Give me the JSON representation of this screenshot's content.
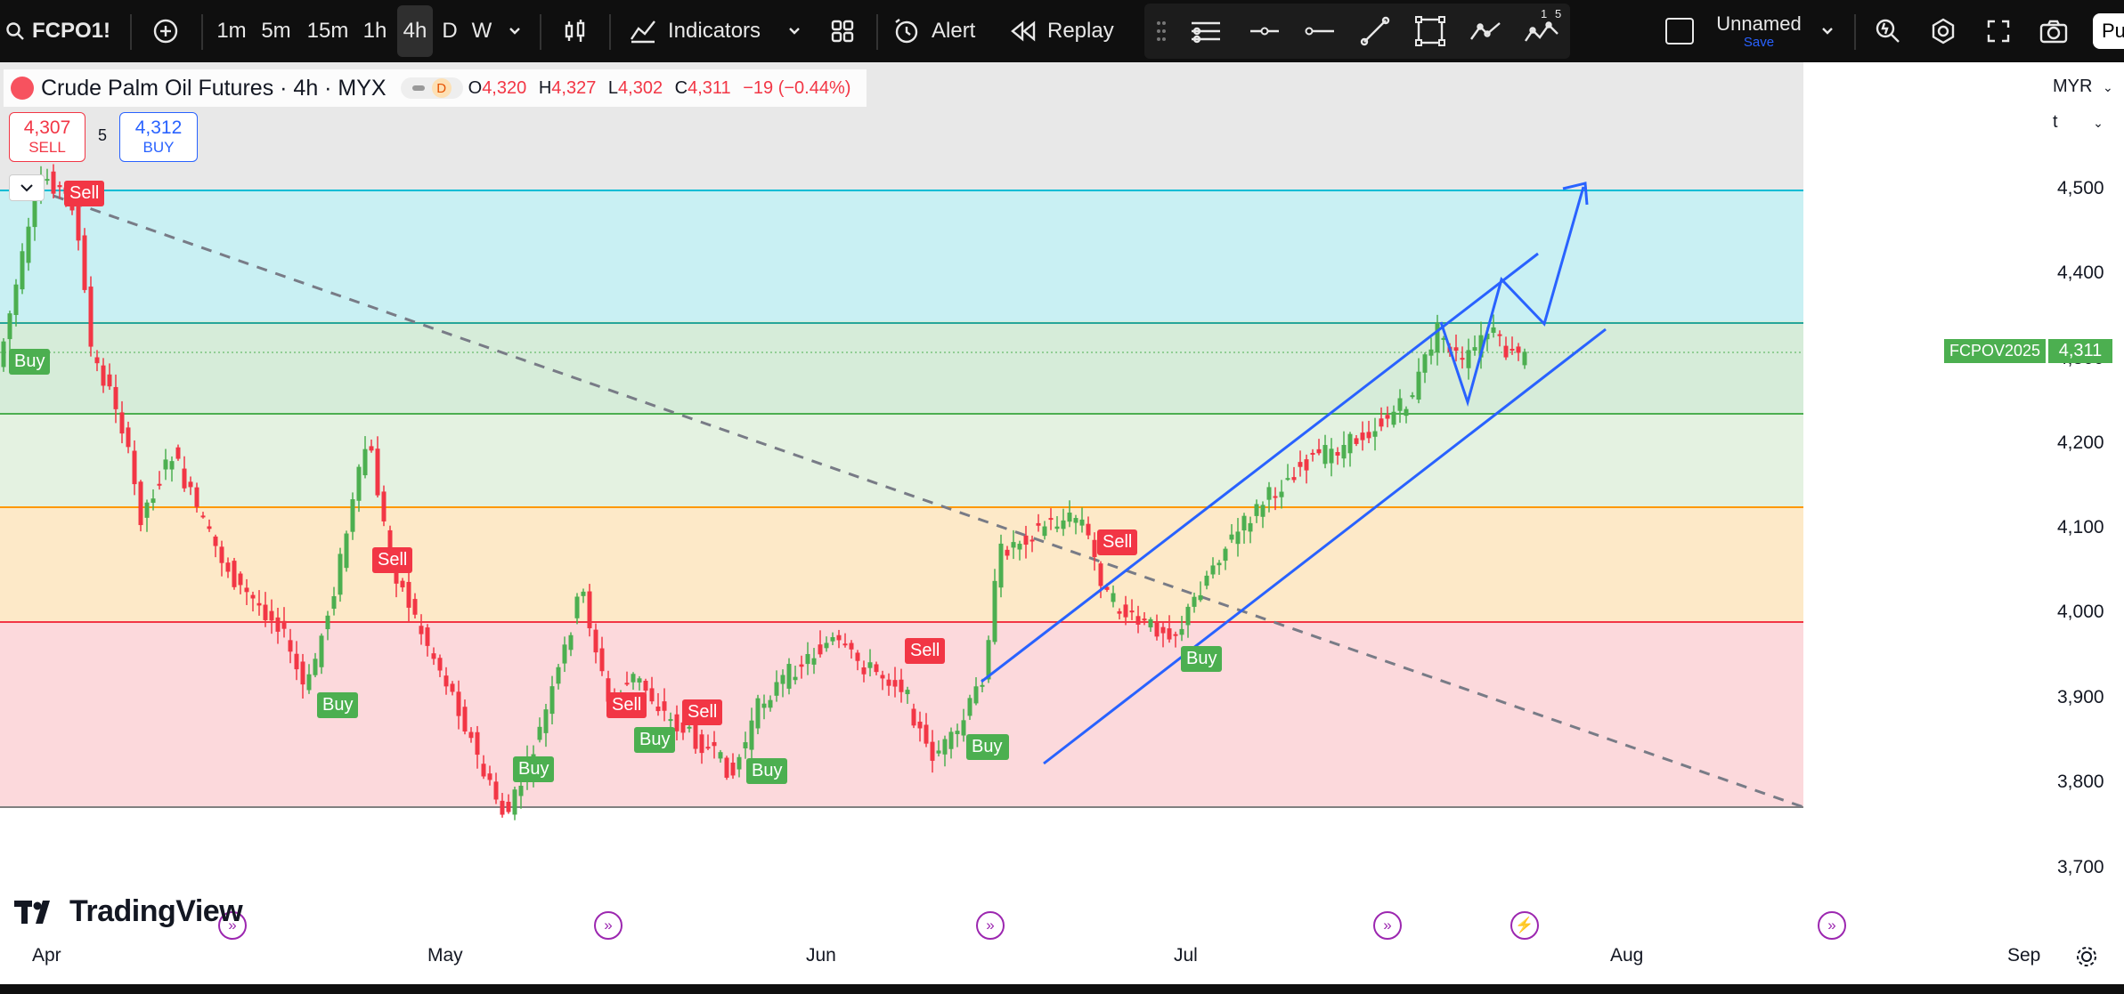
{
  "toolbar": {
    "symbol": "FCPO1!",
    "timeframes": [
      "1m",
      "5m",
      "15m",
      "1h",
      "4h",
      "D",
      "W"
    ],
    "active_timeframe": "4h",
    "indicators_label": "Indicators",
    "alert_label": "Alert",
    "replay_label": "Replay",
    "layout_name": "Unnamed",
    "layout_save": "Save",
    "publish_label": "Pu",
    "draw_badge_a": "1",
    "draw_badge_b": "5"
  },
  "legend": {
    "title": "Crude Palm Oil Futures · 4h · MYX",
    "mode_badge": "D",
    "o_label": "O",
    "o": "4,320",
    "h_label": "H",
    "h": "4,327",
    "l_label": "L",
    "l": "4,302",
    "c_label": "C",
    "c": "4,311",
    "change": "−19 (−0.44%)"
  },
  "order": {
    "sell_price": "4,307",
    "sell_label": "SELL",
    "lot": "5",
    "buy_price": "4,312",
    "buy_label": "BUY"
  },
  "price_axis": {
    "currency": "MYX",
    "currency_display": "MYR",
    "unit": "t",
    "ticks": [
      "4,500",
      "4,400",
      "4,300",
      "4,200",
      "4,100",
      "4,000",
      "3,900",
      "3,800",
      "3,700"
    ],
    "current_symbol": "FCPOV2025",
    "current_price": "4,311"
  },
  "time_axis": {
    "ticks": [
      "Apr",
      "May",
      "Jun",
      "Jul",
      "Aug",
      "Sep"
    ]
  },
  "signals": [
    "Sell",
    "Buy",
    "Sell",
    "Buy",
    "Buy",
    "Sell",
    "Buy",
    "Sell",
    "Buy",
    "Sell",
    "Buy",
    "Buy",
    "Sell",
    "Buy"
  ],
  "branding": {
    "logo_text": "TradingView"
  },
  "colors": {
    "up": "#4caf50",
    "down": "#f23645",
    "accent": "#2962ff",
    "zone_top": "#c9f0f3",
    "zone_mid": "#d6ecd9",
    "zone_orange": "#fde9c8",
    "zone_red": "#fcd9dc"
  }
}
